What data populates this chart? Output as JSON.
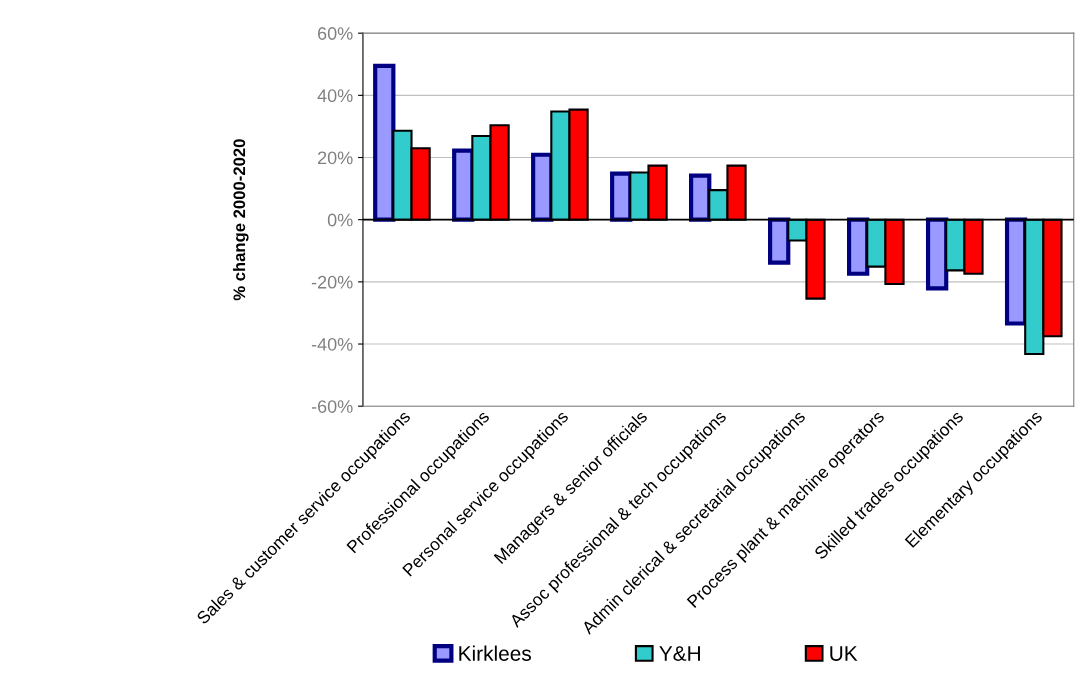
{
  "chart_data": {
    "type": "bar",
    "ylabel": "% change 2000-2020",
    "categories": [
      "Sales & customer service occupations",
      "Professional occupations",
      "Personal service occupations",
      "Managers & senior officials",
      "Assoc professional & tech occupations",
      "Admin clerical & secretarial occupations",
      "Process plant & machine operators",
      "Skilled trades occupations",
      "Elementary occupations"
    ],
    "series": [
      {
        "name": "Kirklees",
        "color": "#9999ff",
        "values": [
          49.5,
          22.2,
          20.9,
          14.8,
          14.2,
          -13.8,
          -17.4,
          -22.1,
          -33.4
        ]
      },
      {
        "name": "Y&H",
        "color": "#33cccc",
        "values": [
          28.6,
          26.9,
          34.8,
          15.2,
          9.5,
          -6.7,
          -15.1,
          -16.3,
          -43.2
        ]
      },
      {
        "name": "UK",
        "color": "#ff0000",
        "values": [
          23.0,
          30.4,
          35.4,
          17.4,
          17.4,
          -25.4,
          -20.7,
          -17.4,
          -37.5
        ]
      }
    ],
    "ylim": [
      -60,
      60
    ],
    "yticks": [
      {
        "value": -60,
        "label": "-60%"
      },
      {
        "value": -40,
        "label": "-40%"
      },
      {
        "value": -20,
        "label": "-20%"
      },
      {
        "value": 0,
        "label": "0%"
      },
      {
        "value": 20,
        "label": "20%"
      },
      {
        "value": 40,
        "label": "40%"
      },
      {
        "value": 60,
        "label": "60%"
      }
    ],
    "grid": "y",
    "legend": "bottom"
  }
}
